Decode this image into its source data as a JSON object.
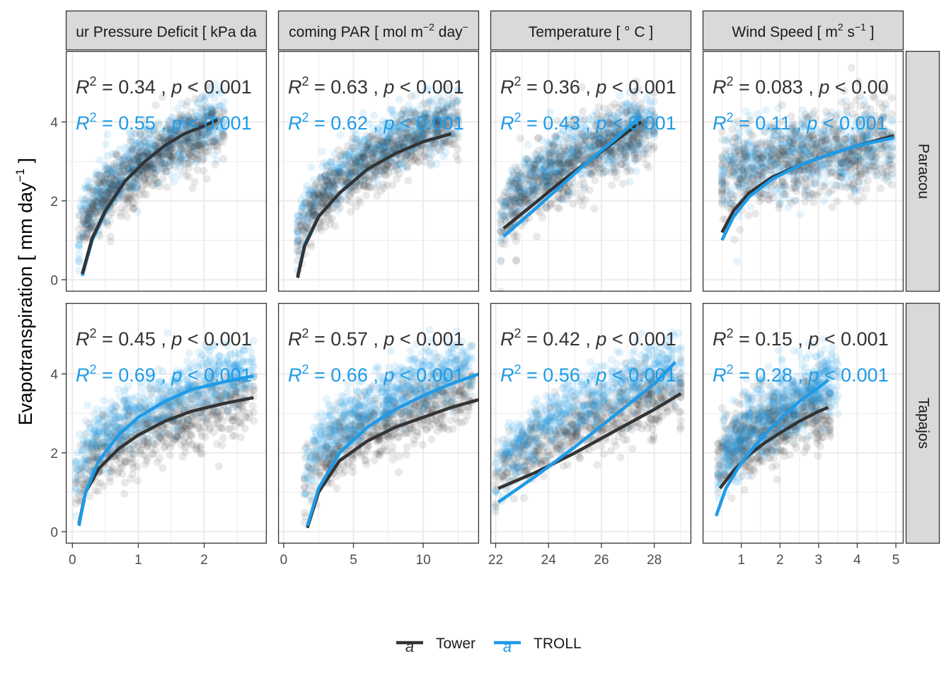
{
  "colors": {
    "tower": "#333333",
    "troll": "#1e9be8",
    "strip_fill": "#d9d9d9",
    "grid": "#ebebeb",
    "panel_border": "#333333"
  },
  "y_axis_title": "Evapotranspiration [ mm day",
  "y_axis_title_sup": "−1",
  "y_axis_title_end": " ]",
  "legend": {
    "key_glyph": "a",
    "items": [
      {
        "name": "Tower",
        "color": "#333333"
      },
      {
        "name": "TROLL",
        "color": "#1e9be8"
      }
    ]
  },
  "chart_data": {
    "type": "scatter",
    "layout": "facet grid: 4 columns x 2 rows, free x scales, shared y scale",
    "ylim": [
      -0.3,
      5.8
    ],
    "y_ticks": [
      0,
      2,
      4
    ],
    "rows": [
      "Paracou",
      "Tapajos"
    ],
    "columns": [
      {
        "strip": {
          "pre": "ur Pressure Deficit [ kPa da",
          "parts": []
        },
        "xlim": [
          -0.1,
          2.95
        ],
        "x_ticks": [
          0,
          1,
          2
        ]
      },
      {
        "strip": {
          "pre": "coming PAR [ mol m",
          "parts": [
            {
              "sup": "−2"
            },
            {
              "t": " day"
            },
            {
              "sup": "−"
            }
          ]
        },
        "xlim": [
          -0.4,
          14.0
        ],
        "x_ticks": [
          0,
          5,
          10
        ]
      },
      {
        "strip": {
          "pre": "Temperature [ ° C ]",
          "parts": []
        },
        "xlim": [
          21.8,
          29.4
        ],
        "x_ticks": [
          22,
          24,
          26,
          28
        ]
      },
      {
        "strip": {
          "pre": "Wind Speed [ m",
          "parts": [
            {
              "sup": "2"
            },
            {
              "t": " s"
            },
            {
              "sup": "−1"
            },
            {
              "t": " ]"
            }
          ]
        },
        "xlim": [
          0.0,
          5.2
        ],
        "x_ticks": [
          1,
          2,
          3,
          4,
          5
        ]
      }
    ],
    "panels": [
      {
        "row": "Paracou",
        "col": 0,
        "annotations": [
          {
            "series": "Tower",
            "r2": "0.34",
            "p": "0.001"
          },
          {
            "series": "TROLL",
            "r2": "0.55",
            "p": "0.001"
          }
        ],
        "fits": [
          {
            "series": "TROLL",
            "x": [
              0.15,
              0.3,
              0.5,
              0.8,
              1.1,
              1.4,
              1.7,
              2.0,
              2.2
            ],
            "y": [
              0.1,
              1.0,
              1.7,
              2.5,
              3.0,
              3.4,
              3.7,
              3.9,
              4.1
            ]
          },
          {
            "series": "Tower",
            "x": [
              0.15,
              0.3,
              0.5,
              0.8,
              1.1,
              1.4,
              1.7,
              2.0,
              2.2
            ],
            "y": [
              0.15,
              1.05,
              1.75,
              2.5,
              3.0,
              3.4,
              3.7,
              3.9,
              4.05
            ]
          }
        ],
        "clouds": [
          {
            "series": "TROLL",
            "x_range": [
              0.1,
              2.3
            ],
            "y_center": [
              1.0,
              4.1
            ],
            "spread": 0.7
          },
          {
            "series": "Tower",
            "x_range": [
              0.1,
              2.3
            ],
            "y_center": [
              0.8,
              3.9
            ],
            "spread": 0.75
          }
        ]
      },
      {
        "row": "Paracou",
        "col": 1,
        "annotations": [
          {
            "series": "Tower",
            "r2": "0.63",
            "p": "0.001"
          },
          {
            "series": "TROLL",
            "r2": "0.62",
            "p": "0.001"
          }
        ],
        "fits": [
          {
            "series": "TROLL",
            "x": [
              1.0,
              1.5,
              2.5,
              4.0,
              6.0,
              8.0,
              10.0,
              12.0
            ],
            "y": [
              0.1,
              0.9,
              1.6,
              2.2,
              2.8,
              3.2,
              3.5,
              3.7
            ]
          },
          {
            "series": "Tower",
            "x": [
              1.0,
              1.5,
              2.5,
              4.0,
              6.0,
              8.0,
              10.0,
              12.0
            ],
            "y": [
              0.05,
              0.85,
              1.6,
              2.2,
              2.8,
              3.2,
              3.5,
              3.7
            ]
          }
        ],
        "clouds": [
          {
            "series": "TROLL",
            "x_range": [
              1.0,
              12.5
            ],
            "y_center": [
              1.1,
              4.2
            ],
            "spread": 0.65
          },
          {
            "series": "Tower",
            "x_range": [
              1.0,
              12.5
            ],
            "y_center": [
              0.7,
              4.0
            ],
            "spread": 0.7
          }
        ]
      },
      {
        "row": "Paracou",
        "col": 2,
        "annotations": [
          {
            "series": "Tower",
            "r2": "0.36",
            "p": "0.001"
          },
          {
            "series": "TROLL",
            "r2": "0.43",
            "p": "0.001"
          }
        ],
        "fits": [
          {
            "series": "Tower",
            "x": [
              22.3,
              23.5,
              24.5,
              25.5,
              26.5,
              27.5
            ],
            "y": [
              1.3,
              1.95,
              2.5,
              3.0,
              3.5,
              4.0
            ]
          },
          {
            "series": "TROLL",
            "x": [
              22.3,
              23.5,
              24.5,
              25.5,
              26.5,
              27.5
            ],
            "y": [
              1.1,
              1.8,
              2.4,
              3.0,
              3.55,
              4.15
            ]
          }
        ],
        "clouds": [
          {
            "series": "TROLL",
            "x_range": [
              22.2,
              28.0
            ],
            "y_center": [
              1.4,
              4.0
            ],
            "spread": 0.7
          },
          {
            "series": "Tower",
            "x_range": [
              22.2,
              28.0
            ],
            "y_center": [
              1.0,
              3.9
            ],
            "spread": 0.85
          }
        ]
      },
      {
        "row": "Paracou",
        "col": 3,
        "annotations": [
          {
            "series": "Tower",
            "r2": "0.083",
            "p": "0.00"
          },
          {
            "series": "TROLL",
            "r2": "0.11",
            "p": "0.001"
          }
        ],
        "fits": [
          {
            "series": "Tower",
            "x": [
              0.5,
              0.8,
              1.2,
              1.8,
              2.5,
              3.2,
              4.0,
              4.95
            ],
            "y": [
              1.2,
              1.75,
              2.2,
              2.6,
              2.9,
              3.15,
              3.4,
              3.65
            ]
          },
          {
            "series": "TROLL",
            "x": [
              0.5,
              0.8,
              1.2,
              1.8,
              2.5,
              3.2,
              4.0,
              4.95
            ],
            "y": [
              1.0,
              1.6,
              2.1,
              2.55,
              2.9,
              3.15,
              3.4,
              3.6
            ]
          }
        ],
        "clouds": [
          {
            "series": "TROLL",
            "x_range": [
              0.5,
              4.9
            ],
            "y_center": [
              2.6,
              3.4
            ],
            "spread": 0.9
          },
          {
            "series": "Tower",
            "x_range": [
              0.5,
              4.9
            ],
            "y_center": [
              2.4,
              3.4
            ],
            "spread": 1.0
          }
        ]
      },
      {
        "row": "Tapajos",
        "col": 0,
        "annotations": [
          {
            "series": "Tower",
            "r2": "0.45",
            "p": "0.001"
          },
          {
            "series": "TROLL",
            "r2": "0.69",
            "p": "0.001"
          }
        ],
        "fits": [
          {
            "series": "Tower",
            "x": [
              0.1,
              0.2,
              0.4,
              0.7,
              1.0,
              1.4,
              1.8,
              2.3,
              2.75
            ],
            "y": [
              0.2,
              1.0,
              1.6,
              2.1,
              2.45,
              2.8,
              3.05,
              3.25,
              3.4
            ]
          },
          {
            "series": "TROLL",
            "x": [
              0.1,
              0.2,
              0.4,
              0.7,
              1.0,
              1.4,
              1.8,
              2.3,
              2.75
            ],
            "y": [
              0.15,
              1.0,
              1.8,
              2.45,
              2.9,
              3.3,
              3.6,
              3.8,
              3.95
            ]
          }
        ],
        "clouds": [
          {
            "series": "Tower",
            "x_range": [
              0.05,
              2.75
            ],
            "y_center": [
              1.0,
              3.4
            ],
            "spread": 0.8
          },
          {
            "series": "TROLL",
            "x_range": [
              0.05,
              2.75
            ],
            "y_center": [
              1.3,
              4.2
            ],
            "spread": 0.7
          }
        ]
      },
      {
        "row": "Tapajos",
        "col": 1,
        "annotations": [
          {
            "series": "Tower",
            "r2": "0.57",
            "p": "0.001"
          },
          {
            "series": "TROLL",
            "r2": "0.66",
            "p": "0.001"
          }
        ],
        "fits": [
          {
            "series": "Tower",
            "x": [
              1.7,
              2.5,
              4.0,
              6.0,
              8.0,
              10.0,
              12.0,
              14.0
            ],
            "y": [
              0.1,
              1.0,
              1.8,
              2.3,
              2.65,
              2.9,
              3.15,
              3.35
            ]
          },
          {
            "series": "TROLL",
            "x": [
              1.7,
              2.5,
              4.0,
              6.0,
              8.0,
              10.0,
              12.0,
              14.0
            ],
            "y": [
              0.15,
              1.1,
              2.0,
              2.65,
              3.1,
              3.45,
              3.75,
              4.0
            ]
          }
        ],
        "clouds": [
          {
            "series": "Tower",
            "x_range": [
              1.5,
              13.5
            ],
            "y_center": [
              1.0,
              3.5
            ],
            "spread": 0.75
          },
          {
            "series": "TROLL",
            "x_range": [
              1.5,
              13.5
            ],
            "y_center": [
              1.3,
              4.3
            ],
            "spread": 0.7
          }
        ]
      },
      {
        "row": "Tapajos",
        "col": 2,
        "annotations": [
          {
            "series": "Tower",
            "r2": "0.42",
            "p": "0.001"
          },
          {
            "series": "TROLL",
            "r2": "0.56",
            "p": "0.001"
          }
        ],
        "fits": [
          {
            "series": "Tower",
            "x": [
              22.1,
              23.5,
              25.0,
              26.5,
              28.0,
              29.0
            ],
            "y": [
              1.1,
              1.5,
              2.0,
              2.55,
              3.1,
              3.5
            ]
          },
          {
            "series": "TROLL",
            "x": [
              22.1,
              23.5,
              25.0,
              26.5,
              28.0,
              28.8
            ],
            "y": [
              0.75,
              1.4,
              2.15,
              2.95,
              3.75,
              4.3
            ]
          }
        ],
        "clouds": [
          {
            "series": "Tower",
            "x_range": [
              22.0,
              29.0
            ],
            "y_center": [
              1.0,
              3.5
            ],
            "spread": 0.75
          },
          {
            "series": "TROLL",
            "x_range": [
              22.0,
              29.0
            ],
            "y_center": [
              1.1,
              4.3
            ],
            "spread": 0.7
          }
        ]
      },
      {
        "row": "Tapajos",
        "col": 3,
        "annotations": [
          {
            "series": "Tower",
            "r2": "0.15",
            "p": "0.001"
          },
          {
            "series": "TROLL",
            "r2": "0.28",
            "p": "0.001"
          }
        ],
        "fits": [
          {
            "series": "Tower",
            "x": [
              0.45,
              0.8,
              1.2,
              1.6,
              2.0,
              2.5,
              3.0,
              3.25
            ],
            "y": [
              1.1,
              1.55,
              1.95,
              2.25,
              2.5,
              2.8,
              3.05,
              3.15
            ]
          },
          {
            "series": "TROLL",
            "x": [
              0.35,
              0.6,
              1.0,
              1.5,
              2.0,
              2.5,
              3.0,
              3.25
            ],
            "y": [
              0.4,
              1.1,
              1.75,
              2.35,
              2.85,
              3.3,
              3.65,
              3.85
            ]
          }
        ],
        "clouds": [
          {
            "series": "Tower",
            "x_range": [
              0.4,
              3.3
            ],
            "y_center": [
              1.5,
              3.2
            ],
            "spread": 0.85
          },
          {
            "series": "TROLL",
            "x_range": [
              0.4,
              3.5
            ],
            "y_center": [
              1.3,
              3.9
            ],
            "spread": 0.8
          }
        ]
      }
    ]
  }
}
